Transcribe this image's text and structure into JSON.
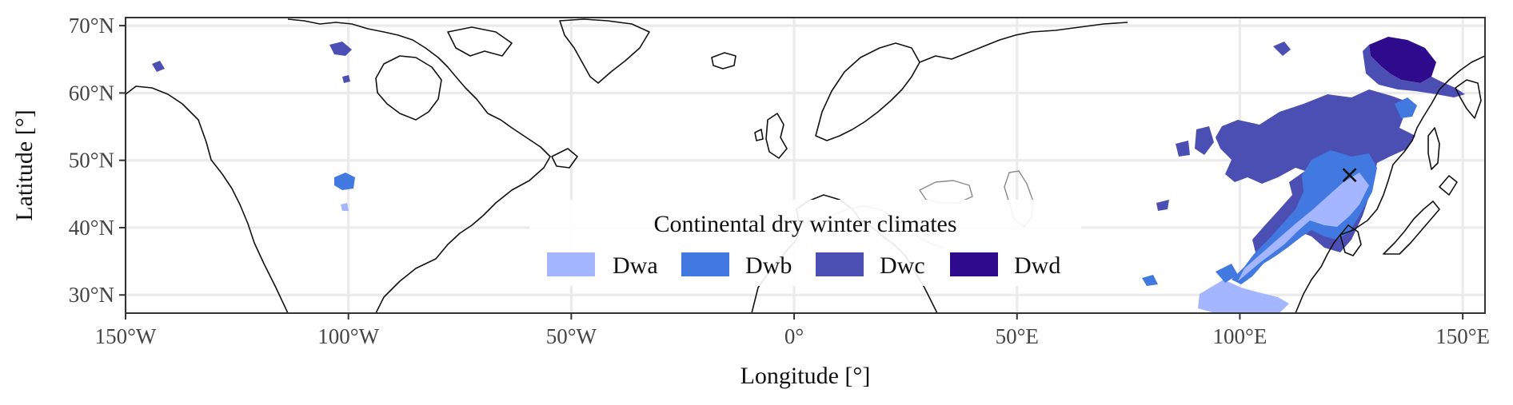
{
  "map": {
    "legend": {
      "title": "Continental dry winter climates",
      "items": [
        {
          "label": "Dwa",
          "color": "#a3b6ff"
        },
        {
          "label": "Dwb",
          "color": "#4179e0"
        },
        {
          "label": "Dwc",
          "color": "#4b4fb3"
        },
        {
          "label": "Dwd",
          "color": "#2e0a8c"
        }
      ]
    },
    "xlabel": "Longitude [°]",
    "ylabel": "Latitude [°]",
    "xticks": [
      {
        "value": -150,
        "label": "150°W"
      },
      {
        "value": -100,
        "label": "100°W"
      },
      {
        "value": -50,
        "label": "50°W"
      },
      {
        "value": 0,
        "label": "0°"
      },
      {
        "value": 50,
        "label": "50°E"
      },
      {
        "value": 100,
        "label": "100°E"
      },
      {
        "value": 150,
        "label": "150°E"
      }
    ],
    "yticks": [
      {
        "value": 30,
        "label": "30°N"
      },
      {
        "value": 40,
        "label": "40°N"
      },
      {
        "value": 50,
        "label": "50°N"
      },
      {
        "value": 60,
        "label": "60°N"
      },
      {
        "value": 70,
        "label": "70°N"
      }
    ],
    "xlim": [
      -150,
      155
    ],
    "ylim": [
      27.3,
      71.2
    ],
    "marker": {
      "lon": 124.6,
      "lat": 47.8,
      "symbol": "×"
    }
  }
}
